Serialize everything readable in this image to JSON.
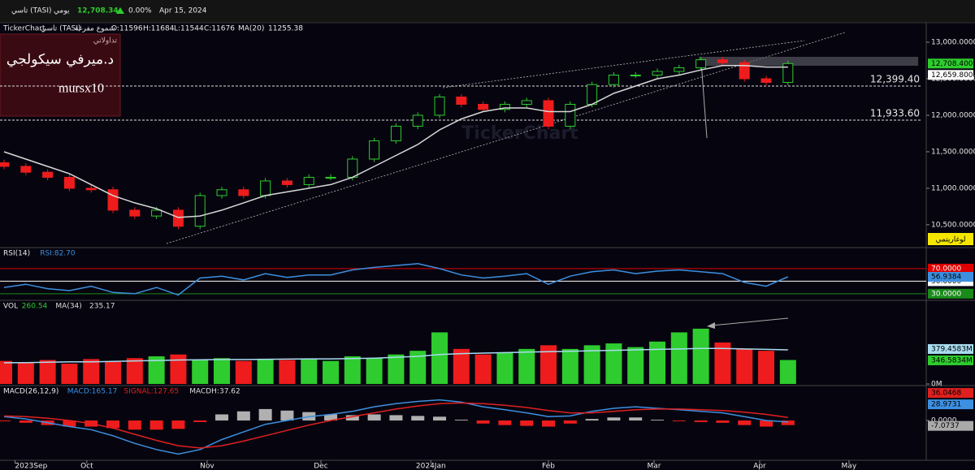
{
  "header": {
    "symbol": "تاسي (TASI)",
    "period": "يومي",
    "last": "12,708.34",
    "change": "0.00%",
    "date": "Apr 15, 2024"
  },
  "info": {
    "brand": "TickerChart",
    "name": "تاسي (TASI)",
    "style": "شموع مفرغة",
    "open": "O:11596",
    "high": "H:11684",
    "low": "L:11544",
    "close": "C:11676",
    "ma_value": "11255.38"
  },
  "overlay": {
    "tag": "تداولاتي",
    "author": "د.ميرفي سيكولجي",
    "handle": "mursx10"
  },
  "watermark": "TickerChart",
  "log_button": "لوغاريتمي",
  "chart_data": [
    {
      "type": "candlestick",
      "x": [
        0,
        4,
        8,
        12,
        16,
        20,
        24,
        28,
        32,
        36,
        40,
        44,
        48,
        52,
        56,
        60,
        64,
        68,
        72,
        76,
        80,
        84,
        88,
        92,
        96,
        100,
        104,
        108,
        112,
        116,
        120,
        124,
        128,
        132,
        136,
        140,
        144
      ],
      "open": [
        11350,
        11300,
        11220,
        11150,
        11000,
        10980,
        10700,
        10620,
        10700,
        10480,
        10900,
        10980,
        10900,
        11100,
        11050,
        11150,
        11150,
        11400,
        11650,
        11850,
        12000,
        12250,
        12150,
        12080,
        12150,
        12200,
        11850,
        12150,
        12420,
        12550,
        12550,
        12600,
        12650,
        12760,
        12720,
        12500,
        12450
      ],
      "high": [
        11390,
        11340,
        11260,
        11190,
        11040,
        11020,
        10740,
        10740,
        10740,
        10940,
        11020,
        11020,
        11140,
        11140,
        11190,
        11190,
        11440,
        11690,
        11890,
        12040,
        12290,
        12290,
        12190,
        12190,
        12240,
        12240,
        12190,
        12460,
        12590,
        12590,
        12640,
        12690,
        12800,
        12800,
        12760,
        12540,
        12748
      ],
      "low": [
        11260,
        11180,
        11110,
        10960,
        10940,
        10660,
        10580,
        10580,
        10440,
        10440,
        10860,
        10860,
        10860,
        11010,
        11010,
        11110,
        11110,
        11360,
        11610,
        11810,
        11960,
        12110,
        12040,
        12040,
        12110,
        11810,
        11810,
        12110,
        12380,
        12510,
        12510,
        12560,
        12610,
        12680,
        12460,
        12410,
        12410
      ],
      "close": [
        11300,
        11220,
        11150,
        11000,
        10980,
        10700,
        10620,
        10700,
        10480,
        10900,
        10980,
        10900,
        11100,
        11050,
        11150,
        11150,
        11400,
        11650,
        11850,
        12000,
        12250,
        12150,
        12080,
        12150,
        12200,
        11850,
        12150,
        12420,
        12550,
        12550,
        12600,
        12650,
        12760,
        12720,
        12500,
        12450,
        12708
      ],
      "up_color": "#2ecc2e",
      "down_color": "#ee1c1c",
      "series": [
        {
          "name": "MA(20)",
          "color": "#d8d8d8",
          "values": [
            11500,
            11400,
            11300,
            11200,
            11050,
            10900,
            10800,
            10720,
            10600,
            10620,
            10700,
            10800,
            10900,
            10950,
            11000,
            11050,
            11150,
            11300,
            11450,
            11600,
            11800,
            11950,
            12050,
            12100,
            12100,
            12050,
            12050,
            12150,
            12300,
            12400,
            12500,
            12550,
            12620,
            12680,
            12680,
            12660,
            12660
          ]
        }
      ],
      "xlim": [
        -0.75,
        169.4
      ],
      "xticks": [
        {
          "value": 2,
          "label": "2023Sep"
        },
        {
          "value": 15.2,
          "label": "Oct"
        },
        {
          "value": 37.3,
          "label": "Nov"
        },
        {
          "value": 58.2,
          "label": "Dec"
        },
        {
          "value": 78.4,
          "label": "2024Jan"
        },
        {
          "value": 100,
          "label": "Feb"
        },
        {
          "value": 119.4,
          "label": "Mar"
        },
        {
          "value": 138.8,
          "label": "Apr"
        },
        {
          "value": 155.2,
          "label": "May"
        }
      ],
      "ylim": [
        10210,
        13245
      ],
      "yticks": [
        {
          "value": 13000,
          "label": "13,000.0000"
        },
        {
          "value": 12500,
          "label": "12,500.0000"
        },
        {
          "value": 12000,
          "label": "12,000.0000"
        },
        {
          "value": 11500,
          "label": "11,500.0000"
        },
        {
          "value": 11000,
          "label": "11,000.0000"
        },
        {
          "value": 10500,
          "label": "10,500.0000"
        }
      ],
      "markers": [
        {
          "value": 12708.4,
          "label": "12,708.4000",
          "color": "#2ecc2e"
        },
        {
          "value": 12659.8,
          "label": "12,659.8000",
          "color": "#ffffff"
        }
      ],
      "levels": [
        {
          "value": 12399.4,
          "label": "12,399.40"
        },
        {
          "value": 11933.6,
          "label": "11,933.60"
        }
      ]
    },
    {
      "type": "line",
      "title": "RSI(14)",
      "readout": "RSI:82.70",
      "series": [
        {
          "color": "#3d8fe0",
          "values": [
            40,
            45,
            38,
            35,
            42,
            32,
            30,
            40,
            28,
            55,
            58,
            52,
            62,
            56,
            60,
            60,
            68,
            72,
            75,
            78,
            70,
            60,
            55,
            58,
            62,
            45,
            58,
            65,
            68,
            62,
            66,
            68,
            65,
            62,
            48,
            42,
            57
          ]
        }
      ],
      "ylim": [
        22,
        101
      ],
      "yticks": [
        {
          "value": 70,
          "label": "70.0000"
        },
        {
          "value": 50,
          "label": "50.0000"
        },
        {
          "value": 30,
          "label": "30.0000"
        }
      ],
      "tick_colors": [
        "#e00000",
        "#ffffff",
        "#1a8a1a"
      ],
      "markers": [
        {
          "value": 56.9384,
          "label": "56.9384",
          "color": "#3d8fe0"
        }
      ]
    },
    {
      "type": "bar",
      "title": "VOL",
      "readout": "260.54",
      "values": [
        250,
        230,
        260,
        220,
        270,
        240,
        280,
        300,
        320,
        260,
        280,
        250,
        270,
        260,
        270,
        250,
        300,
        280,
        320,
        360,
        560,
        380,
        320,
        340,
        380,
        420,
        380,
        420,
        440,
        400,
        460,
        560,
        600,
        450,
        380,
        360,
        260
      ],
      "series": [
        {
          "name": "MA(34)",
          "readout": "235.17",
          "color": "#a8dcf0",
          "values": [
            230,
            232,
            235,
            240,
            240,
            245,
            250,
            255,
            260,
            262,
            265,
            265,
            268,
            270,
            272,
            272,
            275,
            280,
            290,
            300,
            320,
            330,
            335,
            340,
            345,
            350,
            355,
            360,
            365,
            370,
            375,
            380,
            385,
            385,
            380,
            375,
            370
          ]
        }
      ],
      "ylim": [
        0,
        890
      ],
      "yticks": [
        {
          "value": 0,
          "label": "0M"
        }
      ],
      "markers": [
        {
          "value": 379.4583,
          "label": "379.4583M",
          "color": "#a8dcf0"
        },
        {
          "value": 346.5834,
          "label": "346.5834M",
          "color": "#2ecc2e"
        }
      ]
    },
    {
      "type": "macd",
      "title": "MACD(26,12,9)",
      "histogram": [
        -1,
        -3,
        -6,
        -8,
        -8,
        -10,
        -12,
        -12,
        -11,
        -2,
        8,
        12,
        15,
        13,
        11,
        8,
        7,
        8,
        7,
        6,
        5,
        1,
        -4,
        -6,
        -7,
        -8,
        -4,
        2,
        4,
        4,
        1,
        -1,
        -2,
        -3,
        -6,
        -8,
        -6
      ],
      "histogram_readout": "MACDH:37.62",
      "series": [
        {
          "readout": "MACD:165.17",
          "color": "#3d8fe0",
          "values": [
            5,
            2,
            -3,
            -8,
            -12,
            -20,
            -30,
            -38,
            -44,
            -38,
            -25,
            -15,
            -5,
            0,
            5,
            8,
            12,
            18,
            22,
            25,
            27,
            24,
            18,
            14,
            10,
            5,
            6,
            12,
            16,
            18,
            16,
            14,
            12,
            10,
            5,
            0,
            -2
          ]
        },
        {
          "readout": "SIGNAL:127.65",
          "color": "#e02020",
          "values": [
            6,
            5,
            3,
            0,
            -4,
            -10,
            -18,
            -26,
            -33,
            -36,
            -33,
            -27,
            -20,
            -13,
            -6,
            0,
            5,
            10,
            15,
            19,
            22,
            23,
            22,
            20,
            17,
            13,
            10,
            10,
            12,
            14,
            15,
            15,
            14,
            13,
            11,
            8,
            4
          ]
        }
      ],
      "ylim": [
        -51,
        43.6
      ],
      "yticks": [
        {
          "value": 0,
          "label": "0.0000"
        }
      ],
      "markers": [
        {
          "value": 36.0468,
          "label": "36.0468",
          "color": "#e02020"
        },
        {
          "value": 28.9731,
          "label": "28.9731",
          "color": "#3d8fe0"
        },
        {
          "value": -7.0737,
          "label": "-7.0737",
          "color": "#aaaaaa"
        }
      ]
    }
  ]
}
